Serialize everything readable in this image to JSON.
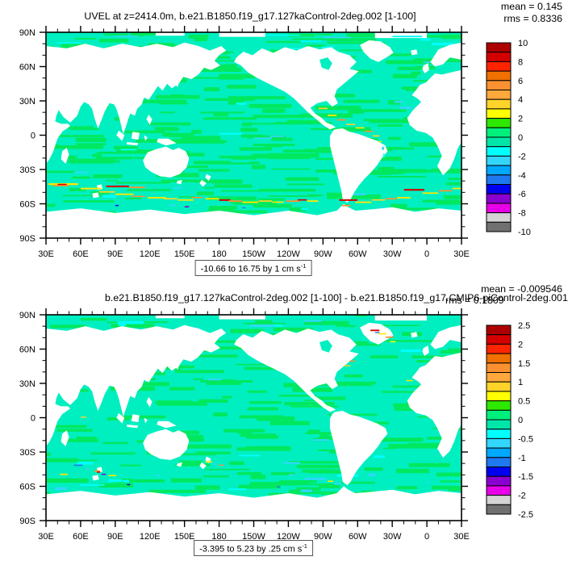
{
  "panels": [
    {
      "id": "top",
      "title": "UVEL at z=2414.0m, b.e21.B1850.f19_g17.127kaControl-2deg.002 [1-100]",
      "mean_label": "mean = 0.145",
      "rms_label": "rms = 0.8336",
      "caption": "-10.66 to 16.75 by 1 cm s",
      "caption_sup": "-1",
      "colorbar_labels": [
        "10",
        "8",
        "6",
        "4",
        "2",
        "0",
        "-2",
        "-4",
        "-6",
        "-8",
        "-10"
      ],
      "texture_seed": 11,
      "green_stripes": 300,
      "features": [
        [
          2,
          132,
          26,
          1.6,
          "#ffe800"
        ],
        [
          6,
          133.5,
          14,
          1.2,
          "#ff9030"
        ],
        [
          10,
          132.5,
          8,
          1.1,
          "#d40000"
        ],
        [
          30,
          136,
          18,
          1.4,
          "#ffe800"
        ],
        [
          46,
          139,
          14,
          1.2,
          "#ffd42a"
        ],
        [
          52,
          134,
          20,
          1.5,
          "#d40000"
        ],
        [
          72,
          135,
          14,
          1.3,
          "#ff9030"
        ],
        [
          60,
          141,
          16,
          1.3,
          "#ffe800"
        ],
        [
          74,
          143,
          12,
          1.1,
          "#ff9030"
        ],
        [
          88,
          144,
          16,
          1.3,
          "#ffe800"
        ],
        [
          102,
          145,
          12,
          1.2,
          "#ffd42a"
        ],
        [
          114,
          146,
          14,
          1.3,
          "#ffe800"
        ],
        [
          126,
          144,
          10,
          1.1,
          "#ff9030"
        ],
        [
          138,
          145,
          12,
          1.2,
          "#ffe800"
        ],
        [
          150,
          146,
          10,
          1.4,
          "#d40000"
        ],
        [
          158,
          147,
          12,
          1.2,
          "#ff9030"
        ],
        [
          170,
          148,
          14,
          1.3,
          "#ffe800"
        ],
        [
          184,
          147,
          12,
          1.2,
          "#ffd42a"
        ],
        [
          196,
          148,
          10,
          1.1,
          "#ffe800"
        ],
        [
          208,
          147,
          12,
          1.3,
          "#ff9030"
        ],
        [
          218,
          146,
          8,
          1.2,
          "#d40000"
        ],
        [
          226,
          147,
          10,
          1.2,
          "#ffe800"
        ],
        [
          254,
          146,
          16,
          1.4,
          "#d40000"
        ],
        [
          256,
          151,
          8,
          1.2,
          "#ff9030"
        ],
        [
          268,
          148,
          14,
          1.3,
          "#ffe800"
        ],
        [
          282,
          146,
          12,
          1.2,
          "#ffd42a"
        ],
        [
          294,
          145,
          10,
          1.2,
          "#ff9030"
        ],
        [
          304,
          144,
          12,
          1.3,
          "#ffe800"
        ],
        [
          310,
          137,
          18,
          1.5,
          "#d40000"
        ],
        [
          326,
          140,
          14,
          1.3,
          "#ffe800"
        ],
        [
          340,
          138,
          12,
          1.2,
          "#ff9030"
        ],
        [
          352,
          136,
          8,
          1.2,
          "#ffe800"
        ],
        [
          236,
          66,
          8,
          1.2,
          "#ffd42a"
        ],
        [
          244,
          72,
          8,
          1.3,
          "#ffe800"
        ],
        [
          252,
          76,
          8,
          1.2,
          "#ff9030"
        ],
        [
          260,
          80,
          8,
          1.2,
          "#ffd42a"
        ],
        [
          268,
          83,
          8,
          1.2,
          "#ffe800"
        ],
        [
          276,
          86,
          7,
          1.2,
          "#ff9030"
        ],
        [
          283,
          90,
          6,
          1.2,
          "#ffd42a"
        ],
        [
          288,
          95,
          3,
          1.1,
          "#ffe800"
        ],
        [
          291,
          100,
          2,
          3,
          "#33d6ff"
        ],
        [
          292,
          106,
          1.5,
          4,
          "#00ffff"
        ],
        [
          190,
          2,
          30,
          1.2,
          "#00ffff"
        ],
        [
          240,
          4,
          24,
          1.2,
          "#33d6ff"
        ],
        [
          300,
          3,
          26,
          1.3,
          "#00ffff"
        ],
        [
          60,
          3,
          20,
          1,
          "#33d6ff"
        ],
        [
          150,
          88,
          20,
          1.5,
          "#00ffff"
        ],
        [
          180,
          92,
          16,
          1.3,
          "#33d6ff"
        ],
        [
          120,
          152,
          4,
          1.2,
          "#8a00d0"
        ],
        [
          170,
          153,
          3,
          1,
          "#1e78f0"
        ],
        [
          288,
          152,
          4,
          1.2,
          "#33d6ff"
        ],
        [
          60,
          151,
          3,
          1,
          "#0000f0"
        ]
      ]
    },
    {
      "id": "bottom",
      "title": "b.e21.B1850.f19_g17.127kaControl-2deg.002 [1-100] - b.e21.B1850.f19_g17.CMIP6-piControl-2deg.001",
      "mean_label": "mean = -0.009546",
      "rms_label": "rms = 0.1809",
      "caption": "-3.395 to 5.23 by .25 cm s",
      "caption_sup": "-1",
      "colorbar_labels": [
        "2.5",
        "2",
        "1.5",
        "1",
        "0.5",
        "0",
        "-0.5",
        "-1",
        "-1.5",
        "-2",
        "-2.5"
      ],
      "texture_seed": 42,
      "green_stripes": 210,
      "features": [
        [
          281,
          13,
          8,
          1.3,
          "#d40000"
        ],
        [
          288,
          16,
          7,
          1.2,
          "#ffe800"
        ],
        [
          294,
          19,
          7,
          1.2,
          "#ff9030"
        ],
        [
          298,
          23,
          5,
          1.1,
          "#ffff00"
        ],
        [
          285,
          15,
          4,
          1,
          "#1e78f0"
        ],
        [
          258,
          44,
          6,
          1.1,
          "#ffd42a"
        ],
        [
          263,
          40,
          5,
          1,
          "#ff9030"
        ],
        [
          312,
          57,
          6,
          1.1,
          "#ffe800"
        ],
        [
          24,
          131,
          8,
          1.2,
          "#1e78f0"
        ],
        [
          42,
          136,
          5,
          1.5,
          "#ff9030"
        ],
        [
          44,
          137,
          3,
          1.2,
          "#d40000"
        ],
        [
          12,
          139,
          7,
          1.2,
          "#ffe800"
        ],
        [
          54,
          140,
          7,
          1.2,
          "#ffe800"
        ],
        [
          34,
          134,
          4,
          1.1,
          "#33d6ff"
        ],
        [
          48,
          139,
          4,
          1,
          "#8a00d0"
        ],
        [
          30,
          89,
          5,
          1,
          "#ffd42a"
        ],
        [
          138,
          128,
          6,
          1.3,
          "#ffe800"
        ],
        [
          145,
          130,
          4,
          1.1,
          "#33d6ff"
        ],
        [
          150,
          131,
          4,
          1,
          "#ff9030"
        ],
        [
          250,
          147,
          6,
          1.2,
          "#33d6ff"
        ],
        [
          244,
          145,
          5,
          1.1,
          "#ffe800"
        ],
        [
          70,
          148,
          3,
          1,
          "#0000f0"
        ],
        [
          200,
          150,
          3,
          1,
          "#1e78f0"
        ],
        [
          330,
          146,
          3,
          1,
          "#33d6ff"
        ],
        [
          95,
          140,
          4,
          1.1,
          "#33d6ff"
        ]
      ]
    }
  ],
  "axes": {
    "lon_labels": [
      "30E",
      "60E",
      "90E",
      "120E",
      "150E",
      "180",
      "150W",
      "120W",
      "90W",
      "60W",
      "30W",
      "0",
      "30E"
    ],
    "lat_labels": [
      "90N",
      "60N",
      "30N",
      "0",
      "30S",
      "60S",
      "90S"
    ]
  },
  "palette": [
    "#ad0000",
    "#d40000",
    "#ff2400",
    "#f07000",
    "#fb9130",
    "#ffa83c",
    "#ffd42a",
    "#ffff00",
    "#2de800",
    "#00f07c",
    "#00e6a8",
    "#00ffff",
    "#33d6ff",
    "#00a8ff",
    "#1e78f0",
    "#0000f0",
    "#8a00d0",
    "#e800e8",
    "#d4d4d4",
    "#707070"
  ],
  "ocean": {
    "base": "#00efc0",
    "green": "#00e85e",
    "cyan": "#00ffff",
    "light_blue": "#33d6ff"
  },
  "chart_data": [
    {
      "type": "heatmap",
      "title": "UVEL at z=2414.0m, b.e21.B1850.f19_g17.127kaControl-2deg.002 [1-100]",
      "variable": "UVEL",
      "depth": "z=2414.0m",
      "units": "cm s-1",
      "stats": {
        "mean": 0.145,
        "rms": 0.8336
      },
      "field_range": {
        "min": -10.66,
        "max": 16.75,
        "interval": 1
      },
      "colorbar_levels": [
        10,
        8,
        6,
        4,
        2,
        0,
        -2,
        -4,
        -6,
        -8,
        -10
      ],
      "x": {
        "ticks": [
          "30E",
          "60E",
          "90E",
          "120E",
          "150E",
          "180",
          "150W",
          "120W",
          "90W",
          "60W",
          "30W",
          "0",
          "30E"
        ],
        "range_deg_east": [
          30,
          390
        ]
      },
      "y": {
        "ticks": [
          "90N",
          "60N",
          "30N",
          "0",
          "30S",
          "60S",
          "90S"
        ],
        "range_deg_north": [
          -90,
          90
        ]
      },
      "legend_position": "right",
      "grid": false,
      "projection": "equirectangular world map, land masked white",
      "description": "Zonal ocean velocity at 2414 m depth; most open ocean between -1 and 1 cm/s (green/teal), strong eastward jets (yellow/orange/red) along the Antarctic Circumpolar Current ~45-60S and along the northern coast of South America."
    },
    {
      "type": "heatmap",
      "title": "b.e21.B1850.f19_g17.127kaControl-2deg.002 [1-100] - b.e21.B1850.f19_g17.CMIP6-piControl-2deg.001",
      "variable": "UVEL difference",
      "units": "cm s-1",
      "stats": {
        "mean": -0.009546,
        "rms": 0.1809
      },
      "field_range": {
        "min": -3.395,
        "max": 5.23,
        "interval": 0.25
      },
      "colorbar_levels": [
        2.5,
        2,
        1.5,
        1,
        0.5,
        0,
        -0.5,
        -1,
        -1.5,
        -2,
        -2.5
      ],
      "x": {
        "ticks": [
          "30E",
          "60E",
          "90E",
          "120E",
          "150E",
          "180",
          "150W",
          "120W",
          "90W",
          "60W",
          "30W",
          "0",
          "30E"
        ],
        "range_deg_east": [
          30,
          390
        ]
      },
      "y": {
        "ticks": [
          "90N",
          "60N",
          "30N",
          "0",
          "30S",
          "60S",
          "90S"
        ],
        "range_deg_north": [
          -90,
          90
        ]
      },
      "legend_position": "right",
      "grid": false,
      "projection": "equirectangular world map, land masked white",
      "description": "Difference field mostly near zero (teal/green); small localized anomalies near Greenland, the Gulf Stream, the Agulhas/Kerguelen region, New Zealand and Drake Passage."
    }
  ]
}
